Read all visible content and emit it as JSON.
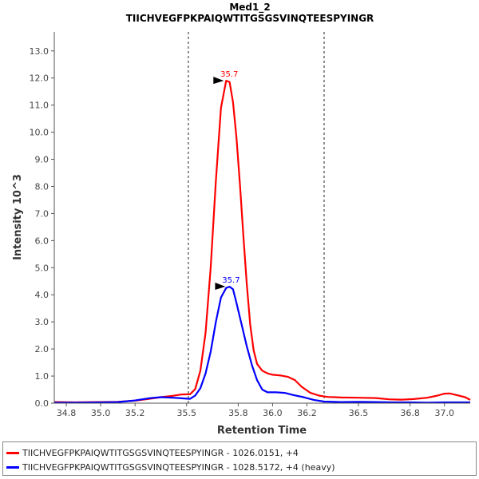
{
  "chart_data": {
    "type": "line",
    "title": "Med1_2",
    "subtitle": "TIICHVEGFPKPAIQWTITGSGSVINQTEESPYINGR",
    "xlabel": "Retention Time",
    "ylabel": "Intensity 10^3",
    "xlim": [
      34.73,
      37.15
    ],
    "ylim": [
      0,
      13.7
    ],
    "x_ticks": [
      34.8,
      35.0,
      35.2,
      35.5,
      35.8,
      36.0,
      36.2,
      36.5,
      36.8,
      37.0
    ],
    "x_tick_labels": [
      "34.8",
      "35.0",
      "35.2",
      "35.5",
      "35.8",
      "36.0",
      "36.2",
      "36.5",
      "36.8",
      "37.0"
    ],
    "y_ticks": [
      0,
      1,
      2,
      3,
      4,
      5,
      6,
      7,
      8,
      9,
      10,
      11,
      12,
      13
    ],
    "y_tick_labels": [
      "0.0",
      "1.0",
      "2.0",
      "3.0",
      "4.0",
      "5.0",
      "6.0",
      "7.0",
      "8.0",
      "9.0",
      "10.0",
      "11.0",
      "12.0",
      "13.0"
    ],
    "grid": false,
    "legend_position": "bottom",
    "boundaries": [
      35.51,
      36.3
    ],
    "series": [
      {
        "name": "TIICHVEGFPKPAIQWTITGSGSVINQTEESPYINGR - 1026.0151, +4",
        "color": "#ff0000",
        "peak": {
          "x": 35.73,
          "y": 11.9,
          "label": "35.7"
        },
        "points": [
          [
            34.73,
            0.04
          ],
          [
            34.85,
            0.03
          ],
          [
            35.0,
            0.04
          ],
          [
            35.1,
            0.05
          ],
          [
            35.2,
            0.09
          ],
          [
            35.28,
            0.16
          ],
          [
            35.35,
            0.22
          ],
          [
            35.42,
            0.27
          ],
          [
            35.47,
            0.32
          ],
          [
            35.52,
            0.33
          ],
          [
            35.55,
            0.52
          ],
          [
            35.58,
            1.2
          ],
          [
            35.61,
            2.6
          ],
          [
            35.64,
            5.0
          ],
          [
            35.67,
            8.2
          ],
          [
            35.7,
            10.9
          ],
          [
            35.73,
            11.9
          ],
          [
            35.75,
            11.85
          ],
          [
            35.77,
            11.1
          ],
          [
            35.79,
            9.8
          ],
          [
            35.81,
            8.1
          ],
          [
            35.83,
            6.2
          ],
          [
            35.85,
            4.4
          ],
          [
            35.87,
            2.9
          ],
          [
            35.89,
            1.95
          ],
          [
            35.91,
            1.45
          ],
          [
            35.94,
            1.2
          ],
          [
            35.97,
            1.1
          ],
          [
            36.0,
            1.05
          ],
          [
            36.05,
            1.02
          ],
          [
            36.09,
            0.97
          ],
          [
            36.13,
            0.85
          ],
          [
            36.17,
            0.6
          ],
          [
            36.22,
            0.38
          ],
          [
            36.27,
            0.28
          ],
          [
            36.32,
            0.23
          ],
          [
            36.4,
            0.21
          ],
          [
            36.5,
            0.2
          ],
          [
            36.6,
            0.19
          ],
          [
            36.68,
            0.14
          ],
          [
            36.75,
            0.13
          ],
          [
            36.82,
            0.15
          ],
          [
            36.9,
            0.2
          ],
          [
            36.96,
            0.28
          ],
          [
            37.0,
            0.35
          ],
          [
            37.03,
            0.36
          ],
          [
            37.07,
            0.3
          ],
          [
            37.12,
            0.22
          ],
          [
            37.15,
            0.12
          ]
        ]
      },
      {
        "name": "TIICHVEGFPKPAIQWTITGSGSVINQTEESPYINGR - 1028.5172, +4 (heavy)",
        "color": "#0000ff",
        "peak": {
          "x": 35.74,
          "y": 4.3,
          "label": "35.7"
        },
        "points": [
          [
            34.73,
            0.02
          ],
          [
            34.85,
            0.02
          ],
          [
            35.0,
            0.03
          ],
          [
            35.1,
            0.04
          ],
          [
            35.2,
            0.1
          ],
          [
            35.28,
            0.18
          ],
          [
            35.35,
            0.22
          ],
          [
            35.42,
            0.2
          ],
          [
            35.47,
            0.18
          ],
          [
            35.52,
            0.16
          ],
          [
            35.55,
            0.28
          ],
          [
            35.58,
            0.55
          ],
          [
            35.61,
            1.1
          ],
          [
            35.64,
            1.9
          ],
          [
            35.67,
            3.0
          ],
          [
            35.7,
            3.9
          ],
          [
            35.73,
            4.25
          ],
          [
            35.75,
            4.3
          ],
          [
            35.77,
            4.2
          ],
          [
            35.79,
            3.7
          ],
          [
            35.82,
            2.9
          ],
          [
            35.85,
            2.1
          ],
          [
            35.88,
            1.4
          ],
          [
            35.91,
            0.85
          ],
          [
            35.94,
            0.5
          ],
          [
            35.97,
            0.4
          ],
          [
            36.02,
            0.4
          ],
          [
            36.07,
            0.38
          ],
          [
            36.12,
            0.3
          ],
          [
            36.18,
            0.22
          ],
          [
            36.24,
            0.12
          ],
          [
            36.3,
            0.06
          ],
          [
            36.4,
            0.04
          ],
          [
            36.5,
            0.05
          ],
          [
            36.6,
            0.04
          ],
          [
            36.7,
            0.03
          ],
          [
            36.8,
            0.03
          ],
          [
            36.9,
            0.02
          ],
          [
            37.0,
            0.03
          ],
          [
            37.15,
            0.03
          ]
        ]
      }
    ]
  }
}
